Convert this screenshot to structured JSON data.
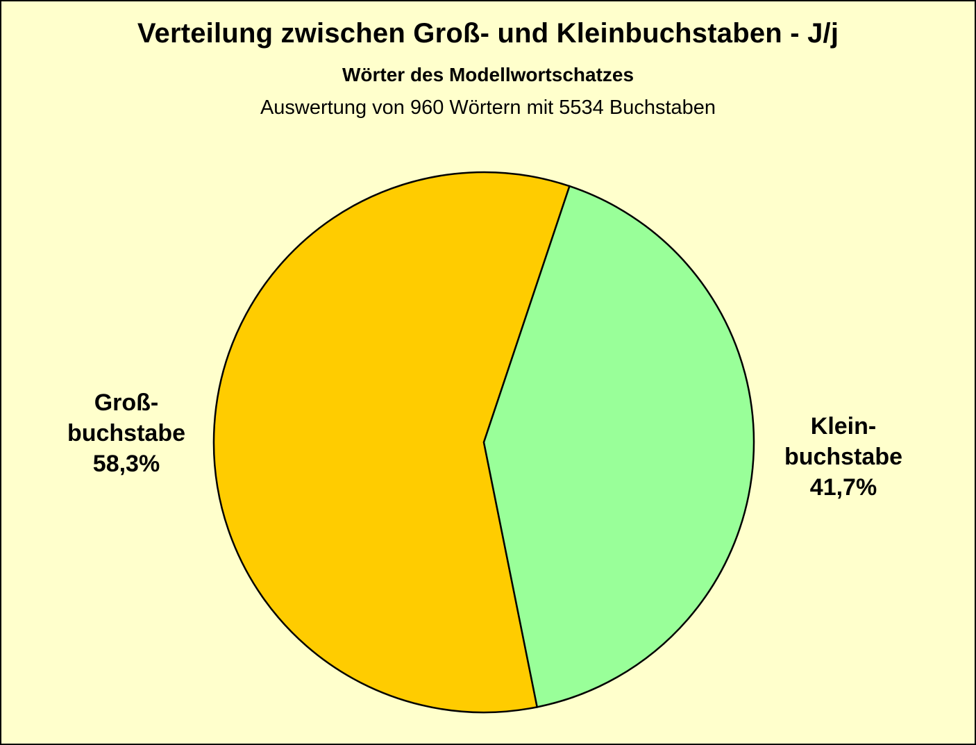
{
  "chart_data": {
    "type": "pie",
    "title": "Verteilung zwischen Groß- und  Kleinbuchstaben - J/j",
    "subtitle": "Wörter des Modellwortschatzes",
    "subtitle2": "Auswertung von 960 Wörtern mit 5534 Buchstaben",
    "slices": [
      {
        "label_lines": [
          "Groß-",
          "buchstabe"
        ],
        "value": 58.3,
        "value_label": "58,3%",
        "color": "#ffcc00"
      },
      {
        "label_lines": [
          "Klein-",
          "buchstabe"
        ],
        "value": 41.7,
        "value_label": "41,7%",
        "color": "#99ff99"
      }
    ],
    "background_color": "#ffffcc",
    "legend": "none",
    "grid": false
  }
}
